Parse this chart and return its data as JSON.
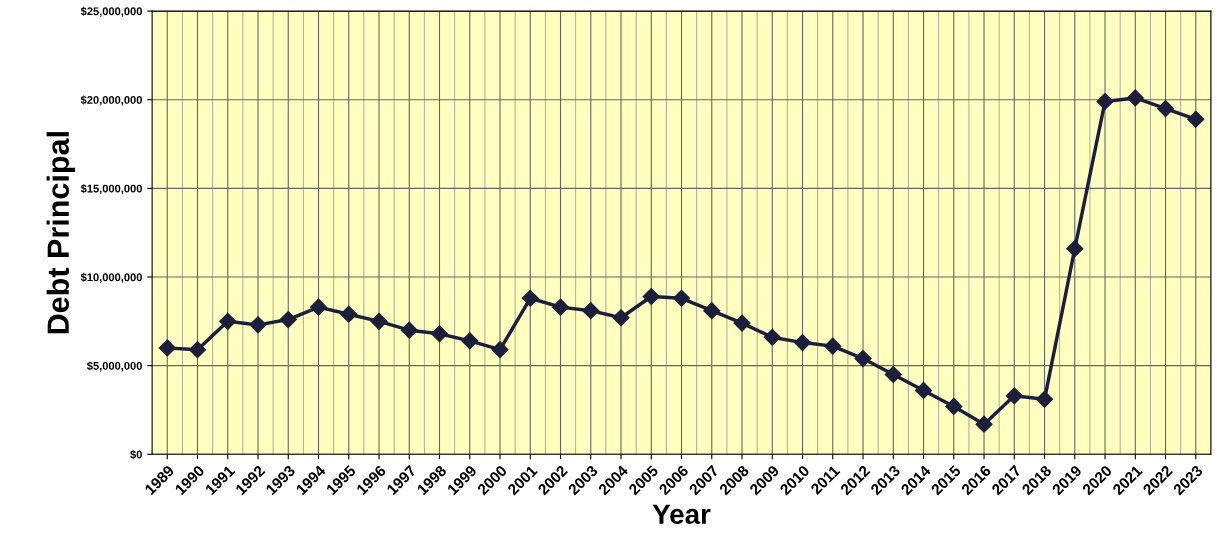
{
  "chart_data": {
    "type": "line",
    "xlabel": "Year",
    "ylabel": "Debt Principal",
    "categories": [
      "1989",
      "1990",
      "1991",
      "1992",
      "1993",
      "1994",
      "1995",
      "1996",
      "1997",
      "1998",
      "1999",
      "2000",
      "2001",
      "2002",
      "2003",
      "2004",
      "2005",
      "2006",
      "2007",
      "2008",
      "2009",
      "2010",
      "2011",
      "2012",
      "2013",
      "2014",
      "2015",
      "2016",
      "2017",
      "2018",
      "2019",
      "2020",
      "2021",
      "2022",
      "2023"
    ],
    "series": [
      {
        "color": "#1c1f3c",
        "values": [
          6000000,
          5900000,
          7500000,
          7300000,
          7600000,
          8300000,
          7900000,
          7500000,
          7000000,
          6800000,
          6400000,
          5900000,
          8800000,
          8300000,
          8100000,
          7700000,
          8900000,
          8800000,
          8100000,
          7400000,
          6600000,
          6300000,
          6100000,
          5400000,
          4500000,
          3600000,
          2700000,
          1700000,
          3300000,
          3100000,
          11600000,
          19900000,
          20100000,
          19500000,
          18900000
        ]
      }
    ],
    "ylim": [
      0,
      25000000
    ],
    "yticks": [
      {
        "value": 0,
        "label": "$0"
      },
      {
        "value": 5000000,
        "label": "$5,000,000"
      },
      {
        "value": 10000000,
        "label": "$10,000,000"
      },
      {
        "value": 15000000,
        "label": "$15,000,000"
      },
      {
        "value": 20000000,
        "label": "$20,000,000"
      },
      {
        "value": 25000000,
        "label": "$25,000,000"
      }
    ],
    "grid": true,
    "marker": "diamond",
    "line_style": "solid",
    "legend": false
  }
}
